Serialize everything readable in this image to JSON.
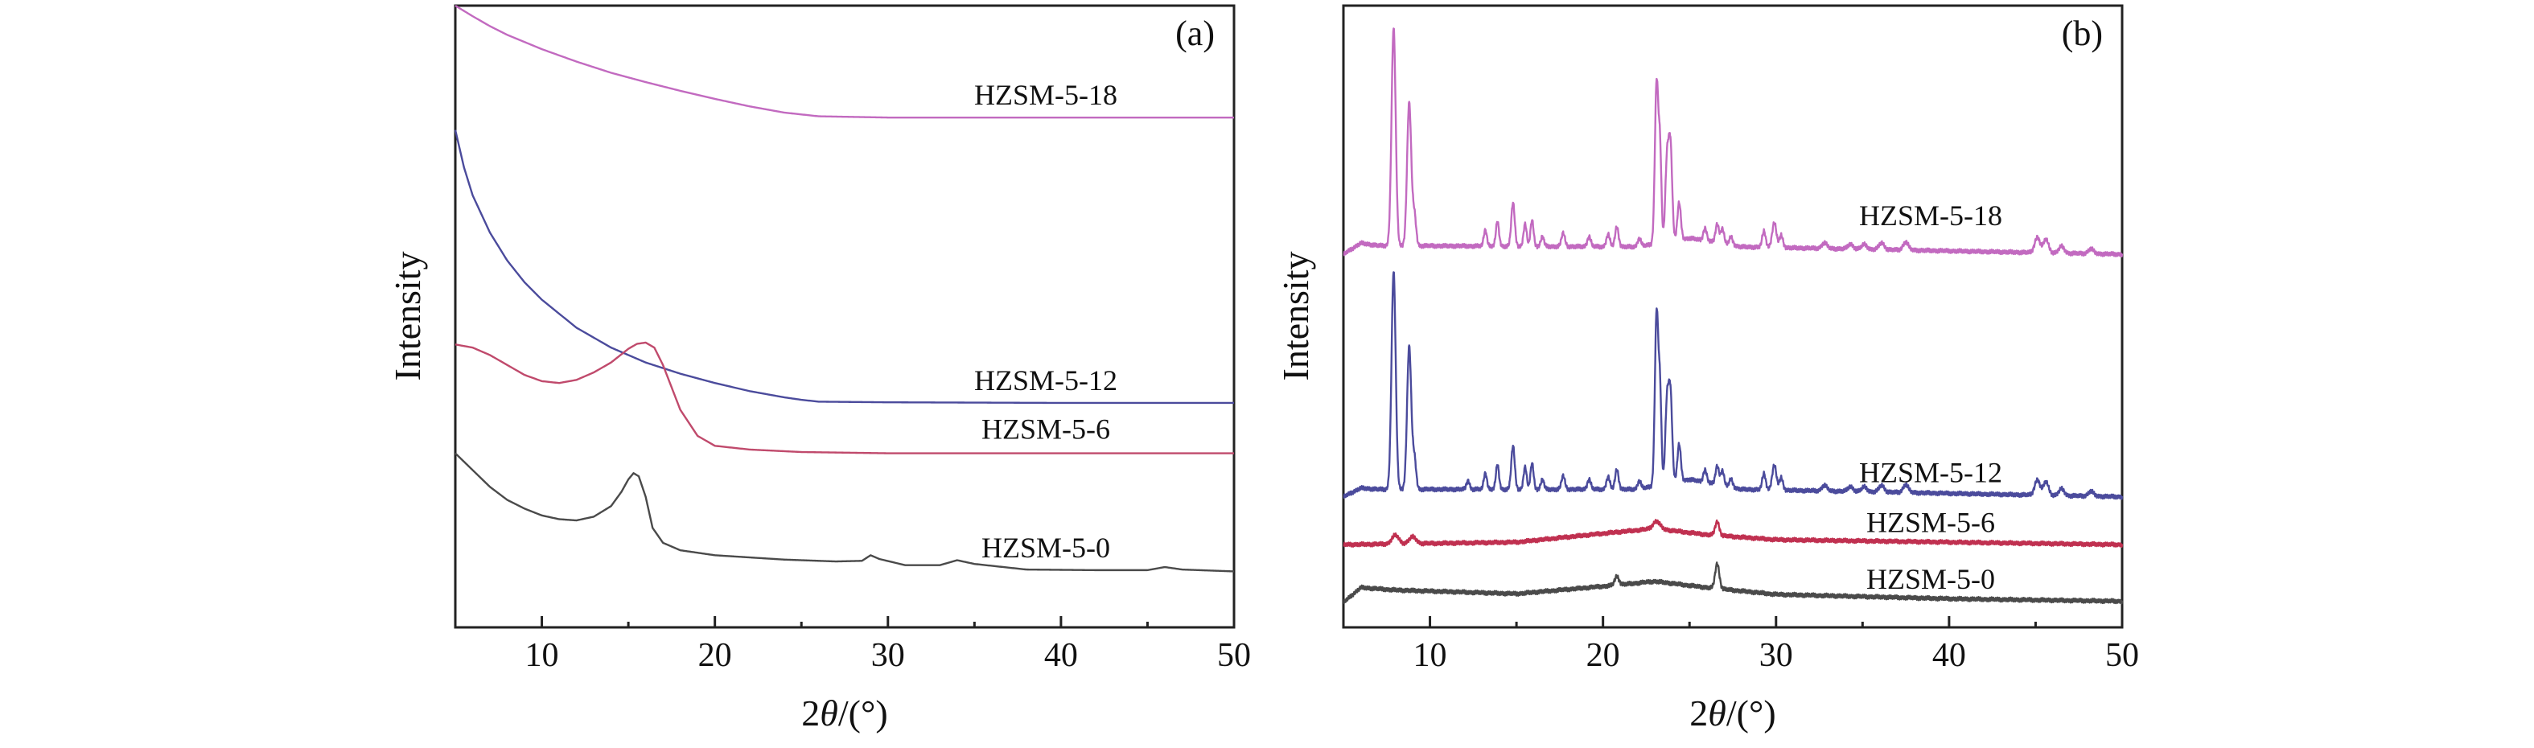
{
  "chart_data": [
    {
      "type": "line",
      "panel_label": "(a)",
      "xlabel_prefix": "2",
      "xlabel_theta": "θ",
      "xlabel_suffix": "/(°)",
      "ylabel": "Intensity",
      "xlim": [
        5,
        50
      ],
      "ylim": [
        0,
        100
      ],
      "xticks": [
        10,
        20,
        30,
        40,
        50
      ],
      "y_tick_labels": false,
      "grid": false,
      "legend": "inline labels",
      "series": [
        {
          "name": "HZSM-5-18",
          "color": "#c26ac0",
          "points": [
            [
              5,
              100
            ],
            [
              6,
              98.3
            ],
            [
              7,
              96.7
            ],
            [
              8,
              95.3
            ],
            [
              10,
              93
            ],
            [
              12,
              91
            ],
            [
              14,
              89.2
            ],
            [
              16,
              87.7
            ],
            [
              18,
              86.3
            ],
            [
              20,
              85
            ],
            [
              22,
              83.8
            ],
            [
              24,
              82.8
            ],
            [
              26,
              82.2
            ],
            [
              28,
              82.1
            ],
            [
              30,
              82
            ],
            [
              40,
              82
            ],
            [
              50,
              82
            ]
          ]
        },
        {
          "name": "HZSM-5-12",
          "color": "#4b4b9c",
          "points": [
            [
              5,
              80
            ],
            [
              5.5,
              74
            ],
            [
              6,
              69.5
            ],
            [
              7,
              63.5
            ],
            [
              8,
              59
            ],
            [
              9,
              55.5
            ],
            [
              10,
              52.7
            ],
            [
              12,
              48.2
            ],
            [
              14,
              45
            ],
            [
              16,
              42.6
            ],
            [
              18,
              40.8
            ],
            [
              20,
              39.3
            ],
            [
              22,
              38
            ],
            [
              24,
              37
            ],
            [
              25,
              36.6
            ],
            [
              26,
              36.3
            ],
            [
              30,
              36.2
            ],
            [
              40,
              36.1
            ],
            [
              50,
              36.1
            ]
          ]
        },
        {
          "name": "HZSM-5-6",
          "color": "#c04a6c",
          "points": [
            [
              5,
              45.5
            ],
            [
              6,
              45
            ],
            [
              7,
              43.8
            ],
            [
              8,
              42.2
            ],
            [
              9,
              40.6
            ],
            [
              10,
              39.6
            ],
            [
              11,
              39.3
            ],
            [
              12,
              39.8
            ],
            [
              13,
              41
            ],
            [
              14,
              42.6
            ],
            [
              15,
              44.8
            ],
            [
              15.5,
              45.6
            ],
            [
              16,
              45.8
            ],
            [
              16.5,
              45
            ],
            [
              17,
              42.2
            ],
            [
              17.5,
              38.6
            ],
            [
              18,
              35
            ],
            [
              19,
              30.8
            ],
            [
              20,
              29.2
            ],
            [
              22,
              28.6
            ],
            [
              25,
              28.2
            ],
            [
              30,
              28
            ],
            [
              40,
              28
            ],
            [
              50,
              28
            ]
          ]
        },
        {
          "name": "HZSM-5-0",
          "color": "#4a4a4a",
          "points": [
            [
              5,
              28
            ],
            [
              6,
              25.3
            ],
            [
              7,
              22.6
            ],
            [
              8,
              20.5
            ],
            [
              9,
              19.1
            ],
            [
              10,
              18
            ],
            [
              11,
              17.4
            ],
            [
              12,
              17.2
            ],
            [
              13,
              17.8
            ],
            [
              14,
              19.5
            ],
            [
              14.6,
              21.8
            ],
            [
              15,
              23.8
            ],
            [
              15.3,
              24.8
            ],
            [
              15.6,
              24.3
            ],
            [
              16,
              21
            ],
            [
              16.4,
              16
            ],
            [
              17,
              13.6
            ],
            [
              18,
              12.4
            ],
            [
              20,
              11.6
            ],
            [
              24,
              10.9
            ],
            [
              27,
              10.6
            ],
            [
              28.5,
              10.7
            ],
            [
              29,
              11.6
            ],
            [
              29.5,
              11
            ],
            [
              31,
              10
            ],
            [
              33,
              10
            ],
            [
              34,
              10.8
            ],
            [
              35,
              10.2
            ],
            [
              38,
              9.3
            ],
            [
              42,
              9.2
            ],
            [
              45,
              9.2
            ],
            [
              46,
              9.7
            ],
            [
              47,
              9.3
            ],
            [
              50,
              9
            ]
          ]
        }
      ]
    },
    {
      "type": "line",
      "panel_label": "(b)",
      "xlabel_prefix": "2",
      "xlabel_theta": "θ",
      "xlabel_suffix": "/(°)",
      "ylabel": "Intensity",
      "xlim": [
        5,
        50
      ],
      "ylim": [
        0,
        100
      ],
      "xticks": [
        10,
        20,
        30,
        40,
        50
      ],
      "y_tick_labels": false,
      "grid": false,
      "legend": "inline labels",
      "series": [
        {
          "name": "HZSM-5-18",
          "color": "#c26ac0",
          "baseline": 60,
          "hump": {
            "x": [
              5,
              6,
              7,
              22,
              25,
              28,
              50
            ],
            "y": [
              0,
              1.8,
              1.4,
              1.2,
              2.6,
              1.2,
              0
            ]
          },
          "peaks": [
            [
              7.9,
              35,
              0.12
            ],
            [
              8.8,
              23,
              0.12
            ],
            [
              9.1,
              5,
              0.1
            ],
            [
              13.2,
              2.6,
              0.09
            ],
            [
              13.9,
              4,
              0.09
            ],
            [
              14.8,
              7,
              0.1
            ],
            [
              15.5,
              3.6,
              0.09
            ],
            [
              15.9,
              4.2,
              0.09
            ],
            [
              16.5,
              1.6,
              0.09
            ],
            [
              17.7,
              2.2,
              0.1
            ],
            [
              19.2,
              1.6,
              0.1
            ],
            [
              20.3,
              2,
              0.1
            ],
            [
              20.8,
              3.2,
              0.1
            ],
            [
              22.1,
              1.3,
              0.1
            ],
            [
              23.1,
              26,
              0.1
            ],
            [
              23.3,
              14,
              0.08
            ],
            [
              23.7,
              13,
              0.1
            ],
            [
              23.9,
              15,
              0.1
            ],
            [
              24.4,
              6,
              0.1
            ],
            [
              25.9,
              2,
              0.1
            ],
            [
              26.6,
              3,
              0.1
            ],
            [
              26.9,
              2.4,
              0.1
            ],
            [
              27.4,
              1.3,
              0.1
            ],
            [
              29.3,
              2.6,
              0.1
            ],
            [
              29.9,
              4,
              0.12
            ],
            [
              30.3,
              2,
              0.1
            ],
            [
              32.8,
              0.9,
              0.15
            ],
            [
              34.3,
              0.8,
              0.15
            ],
            [
              35.1,
              0.8,
              0.15
            ],
            [
              36.1,
              1.1,
              0.15
            ],
            [
              37.5,
              1.3,
              0.15
            ],
            [
              45.1,
              2.5,
              0.15
            ],
            [
              45.6,
              2.2,
              0.15
            ],
            [
              46.5,
              1.1,
              0.15
            ],
            [
              48.2,
              0.8,
              0.15
            ]
          ]
        },
        {
          "name": "HZSM-5-12",
          "color": "#4b4b9c",
          "baseline": 21,
          "hump": {
            "x": [
              5,
              6,
              7,
              22,
              25,
              28,
              50
            ],
            "y": [
              0,
              1.4,
              1.2,
              1.2,
              2.8,
              1.2,
              0
            ]
          },
          "peaks": [
            [
              7.9,
              35,
              0.12
            ],
            [
              8.8,
              23,
              0.12
            ],
            [
              9.1,
              5,
              0.1
            ],
            [
              12.2,
              1.4,
              0.09
            ],
            [
              13.2,
              2.6,
              0.09
            ],
            [
              13.9,
              4,
              0.09
            ],
            [
              14.8,
              7,
              0.1
            ],
            [
              15.5,
              3.6,
              0.09
            ],
            [
              15.9,
              4.2,
              0.09
            ],
            [
              16.5,
              1.6,
              0.09
            ],
            [
              17.7,
              2.2,
              0.1
            ],
            [
              19.2,
              1.6,
              0.1
            ],
            [
              20.3,
              2,
              0.1
            ],
            [
              20.8,
              3.2,
              0.1
            ],
            [
              22.1,
              1.3,
              0.1
            ],
            [
              23.1,
              28,
              0.1
            ],
            [
              23.3,
              14,
              0.08
            ],
            [
              23.7,
              13,
              0.1
            ],
            [
              23.9,
              14,
              0.1
            ],
            [
              24.4,
              6,
              0.1
            ],
            [
              25.9,
              2,
              0.1
            ],
            [
              26.6,
              3,
              0.1
            ],
            [
              26.9,
              2.4,
              0.1
            ],
            [
              27.4,
              1.3,
              0.1
            ],
            [
              29.3,
              2.6,
              0.1
            ],
            [
              29.9,
              4,
              0.12
            ],
            [
              30.3,
              2,
              0.1
            ],
            [
              32.8,
              0.9,
              0.15
            ],
            [
              34.3,
              0.8,
              0.15
            ],
            [
              35.1,
              0.8,
              0.15
            ],
            [
              36.1,
              1.1,
              0.15
            ],
            [
              37.5,
              1.3,
              0.15
            ],
            [
              45.1,
              2.5,
              0.15
            ],
            [
              45.6,
              2.2,
              0.15
            ],
            [
              46.5,
              1.1,
              0.15
            ],
            [
              48.2,
              0.8,
              0.15
            ]
          ]
        },
        {
          "name": "HZSM-5-6",
          "color": "#c03050",
          "baseline": 12.5,
          "hump": {
            "x": [
              5,
              15,
              20,
              23,
              26,
              30,
              50
            ],
            "y": [
              0.8,
              1.2,
              2.6,
              3.4,
              2.4,
              1.6,
              0.8
            ]
          },
          "peaks": [
            [
              8,
              1.4,
              0.2
            ],
            [
              9,
              1.1,
              0.2
            ],
            [
              23.1,
              1.2,
              0.2
            ],
            [
              26.6,
              2.2,
              0.12
            ]
          ]
        },
        {
          "name": "HZSM-5-0",
          "color": "#4a4a4a",
          "baseline": 4,
          "hump": {
            "x": [
              5,
              6,
              8,
              15,
              20,
              23,
              26,
              30,
              40,
              50
            ],
            "y": [
              0,
              2.4,
              2,
              1.4,
              2.6,
              3.4,
              2.4,
              1.3,
              0.6,
              0.2
            ]
          },
          "peaks": [
            [
              20.8,
              1.4,
              0.12
            ],
            [
              26.6,
              4,
              0.12
            ]
          ]
        }
      ]
    }
  ]
}
